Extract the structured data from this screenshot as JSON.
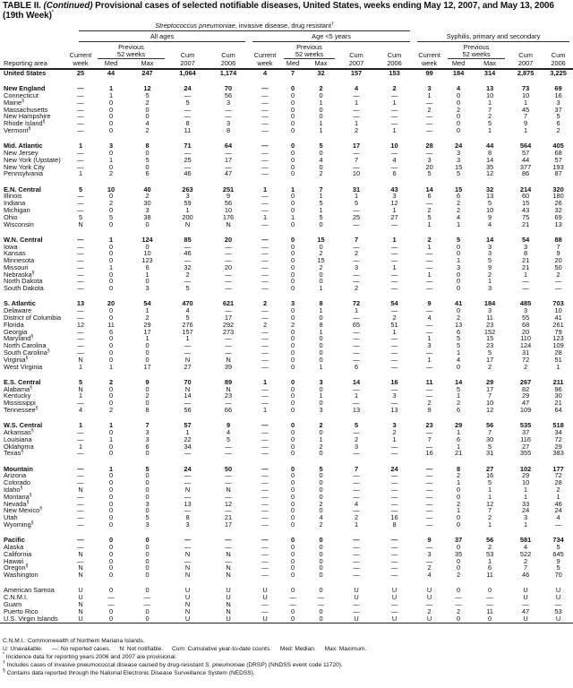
{
  "title": {
    "prefix": "TABLE II. ",
    "continued": "(Continued)",
    "text": " Provisional cases of selected notifiable diseases, United States, weeks ending May 12, 2007, and May 13, 2006",
    "line2": "(19th Week)",
    "marker": "*"
  },
  "header": {
    "strep": "Streptococcus pneumoniae",
    "strep_rest": ", invasive disease, drug resistant",
    "strep_marker": "†",
    "group1": "All ages",
    "group2": "Age <5 years",
    "group3": "Syphilis, primary and secondary",
    "previous": "Previous",
    "weeks52": "52 weeks",
    "current": "Current",
    "week": "week",
    "med": "Med",
    "max": "Max",
    "cum": "Cum",
    "y2007": "2007",
    "y2006": "2006",
    "area": "Reporting area"
  },
  "rows": [
    {
      "area": "United States",
      "bold": true,
      "values": [
        "25",
        "44",
        "247",
        "1,064",
        "1,174",
        "4",
        "7",
        "32",
        "157",
        "153",
        "99",
        "184",
        "314",
        "2,875",
        "3,225"
      ]
    },
    {
      "area": "New England",
      "bold": true,
      "gap": true,
      "values": [
        "—",
        "1",
        "12",
        "24",
        "70",
        "—",
        "0",
        "2",
        "4",
        "2",
        "3",
        "4",
        "13",
        "73",
        "69"
      ]
    },
    {
      "area": "Connecticut",
      "values": [
        "—",
        "1",
        "5",
        "—",
        "56",
        "—",
        "0",
        "0",
        "—",
        "—",
        "1",
        "0",
        "10",
        "10",
        "16"
      ]
    },
    {
      "area": "Maine",
      "fn": "§",
      "values": [
        "—",
        "0",
        "2",
        "5",
        "3",
        "—",
        "0",
        "1",
        "1",
        "1",
        "—",
        "0",
        "1",
        "1",
        "3"
      ]
    },
    {
      "area": "Massachusetts",
      "values": [
        "—",
        "0",
        "0",
        "—",
        "—",
        "—",
        "0",
        "0",
        "—",
        "—",
        "2",
        "2",
        "7",
        "45",
        "37"
      ]
    },
    {
      "area": "New Hampshire",
      "values": [
        "—",
        "0",
        "0",
        "—",
        "—",
        "—",
        "0",
        "0",
        "—",
        "—",
        "—",
        "0",
        "2",
        "7",
        "5"
      ]
    },
    {
      "area": "Rhode Island",
      "fn": "§",
      "values": [
        "—",
        "0",
        "4",
        "8",
        "3",
        "—",
        "0",
        "1",
        "1",
        "—",
        "—",
        "0",
        "5",
        "9",
        "6"
      ]
    },
    {
      "area": "Vermont",
      "fn": "§",
      "values": [
        "—",
        "0",
        "2",
        "11",
        "8",
        "—",
        "0",
        "1",
        "2",
        "1",
        "—",
        "0",
        "1",
        "1",
        "2"
      ]
    },
    {
      "area": "Mid. Atlantic",
      "bold": true,
      "gap": true,
      "values": [
        "1",
        "3",
        "8",
        "71",
        "64",
        "—",
        "0",
        "5",
        "17",
        "10",
        "28",
        "24",
        "44",
        "564",
        "405"
      ]
    },
    {
      "area": "New Jersey",
      "values": [
        "—",
        "0",
        "0",
        "—",
        "—",
        "—",
        "0",
        "0",
        "—",
        "—",
        "—",
        "3",
        "8",
        "57",
        "68"
      ]
    },
    {
      "area": "New York (Upstate)",
      "values": [
        "—",
        "1",
        "5",
        "25",
        "17",
        "—",
        "0",
        "4",
        "7",
        "4",
        "3",
        "3",
        "14",
        "44",
        "57"
      ]
    },
    {
      "area": "New York City",
      "values": [
        "—",
        "0",
        "0",
        "—",
        "—",
        "—",
        "0",
        "0",
        "—",
        "—",
        "20",
        "15",
        "35",
        "377",
        "193"
      ]
    },
    {
      "area": "Pennsylvania",
      "values": [
        "1",
        "2",
        "6",
        "46",
        "47",
        "—",
        "0",
        "2",
        "10",
        "6",
        "5",
        "5",
        "12",
        "86",
        "87"
      ]
    },
    {
      "area": "E.N. Central",
      "bold": true,
      "gap": true,
      "values": [
        "5",
        "10",
        "40",
        "263",
        "251",
        "1",
        "1",
        "7",
        "31",
        "43",
        "14",
        "15",
        "32",
        "214",
        "320"
      ]
    },
    {
      "area": "Illinois",
      "values": [
        "—",
        "0",
        "2",
        "3",
        "9",
        "—",
        "0",
        "1",
        "1",
        "3",
        "6",
        "6",
        "13",
        "60",
        "180"
      ]
    },
    {
      "area": "Indiana",
      "values": [
        "—",
        "2",
        "30",
        "59",
        "56",
        "—",
        "0",
        "5",
        "5",
        "12",
        "—",
        "2",
        "5",
        "15",
        "26"
      ]
    },
    {
      "area": "Michigan",
      "values": [
        "—",
        "0",
        "3",
        "1",
        "10",
        "—",
        "0",
        "1",
        "—",
        "1",
        "2",
        "2",
        "10",
        "43",
        "32"
      ]
    },
    {
      "area": "Ohio",
      "values": [
        "5",
        "5",
        "38",
        "200",
        "176",
        "1",
        "1",
        "5",
        "25",
        "27",
        "5",
        "4",
        "9",
        "75",
        "69"
      ]
    },
    {
      "area": "Wisconsin",
      "values": [
        "N",
        "0",
        "0",
        "N",
        "N",
        "—",
        "0",
        "0",
        "—",
        "—",
        "1",
        "1",
        "4",
        "21",
        "13"
      ]
    },
    {
      "area": "W.N. Central",
      "bold": true,
      "gap": true,
      "values": [
        "—",
        "1",
        "124",
        "85",
        "20",
        "—",
        "0",
        "15",
        "7",
        "1",
        "2",
        "5",
        "14",
        "54",
        "88"
      ]
    },
    {
      "area": "Iowa",
      "values": [
        "—",
        "0",
        "0",
        "—",
        "—",
        "—",
        "0",
        "0",
        "—",
        "—",
        "1",
        "0",
        "3",
        "3",
        "7"
      ]
    },
    {
      "area": "Kansas",
      "values": [
        "—",
        "0",
        "10",
        "46",
        "—",
        "—",
        "0",
        "2",
        "2",
        "—",
        "—",
        "0",
        "3",
        "8",
        "9"
      ]
    },
    {
      "area": "Minnesota",
      "values": [
        "—",
        "0",
        "123",
        "—",
        "—",
        "—",
        "0",
        "15",
        "—",
        "—",
        "—",
        "1",
        "5",
        "21",
        "20"
      ]
    },
    {
      "area": "Missouri",
      "values": [
        "—",
        "1",
        "6",
        "32",
        "20",
        "—",
        "0",
        "2",
        "3",
        "1",
        "—",
        "3",
        "9",
        "21",
        "50"
      ]
    },
    {
      "area": "Nebraska",
      "fn": "§",
      "values": [
        "—",
        "0",
        "1",
        "2",
        "—",
        "—",
        "0",
        "0",
        "—",
        "—",
        "1",
        "0",
        "2",
        "1",
        "2"
      ]
    },
    {
      "area": "North Dakota",
      "values": [
        "—",
        "0",
        "0",
        "—",
        "—",
        "—",
        "0",
        "0",
        "—",
        "—",
        "—",
        "0",
        "1",
        "—",
        "—"
      ]
    },
    {
      "area": "South Dakota",
      "values": [
        "—",
        "0",
        "3",
        "5",
        "—",
        "—",
        "0",
        "1",
        "2",
        "—",
        "—",
        "0",
        "3",
        "—",
        "—"
      ]
    },
    {
      "area": "S. Atlantic",
      "bold": true,
      "gap": true,
      "values": [
        "13",
        "20",
        "54",
        "470",
        "621",
        "2",
        "3",
        "8",
        "72",
        "54",
        "9",
        "41",
        "184",
        "485",
        "703"
      ]
    },
    {
      "area": "Delaware",
      "values": [
        "—",
        "0",
        "1",
        "4",
        "—",
        "—",
        "0",
        "1",
        "1",
        "—",
        "—",
        "0",
        "3",
        "3",
        "10"
      ]
    },
    {
      "area": "District of Columbia",
      "values": [
        "—",
        "0",
        "2",
        "5",
        "17",
        "—",
        "0",
        "0",
        "—",
        "2",
        "4",
        "2",
        "11",
        "55",
        "41"
      ]
    },
    {
      "area": "Florida",
      "values": [
        "12",
        "11",
        "29",
        "276",
        "292",
        "2",
        "2",
        "8",
        "65",
        "51",
        "—",
        "13",
        "23",
        "68",
        "261"
      ]
    },
    {
      "area": "Georgia",
      "values": [
        "—",
        "6",
        "17",
        "157",
        "273",
        "—",
        "0",
        "1",
        "—",
        "1",
        "—",
        "6",
        "152",
        "20",
        "79"
      ]
    },
    {
      "area": "Maryland",
      "fn": "§",
      "values": [
        "—",
        "0",
        "1",
        "1",
        "—",
        "—",
        "0",
        "0",
        "—",
        "—",
        "1",
        "5",
        "15",
        "110",
        "123"
      ]
    },
    {
      "area": "North Carolina",
      "values": [
        "—",
        "0",
        "0",
        "—",
        "—",
        "—",
        "0",
        "0",
        "—",
        "—",
        "3",
        "5",
        "23",
        "124",
        "109"
      ]
    },
    {
      "area": "South Carolina",
      "fn": "§",
      "values": [
        "—",
        "0",
        "0",
        "—",
        "—",
        "—",
        "0",
        "0",
        "—",
        "—",
        "—",
        "1",
        "5",
        "31",
        "28"
      ]
    },
    {
      "area": "Virginia",
      "fn": "§",
      "values": [
        "N",
        "0",
        "0",
        "N",
        "N",
        "—",
        "0",
        "0",
        "—",
        "—",
        "1",
        "4",
        "17",
        "72",
        "51"
      ]
    },
    {
      "area": "West Virginia",
      "values": [
        "1",
        "1",
        "17",
        "27",
        "39",
        "—",
        "0",
        "1",
        "6",
        "—",
        "—",
        "0",
        "2",
        "2",
        "1"
      ]
    },
    {
      "area": "E.S. Central",
      "bold": true,
      "gap": true,
      "values": [
        "5",
        "2",
        "9",
        "70",
        "89",
        "1",
        "0",
        "3",
        "14",
        "16",
        "11",
        "14",
        "29",
        "267",
        "211"
      ]
    },
    {
      "area": "Alabama",
      "fn": "§",
      "values": [
        "N",
        "0",
        "0",
        "N",
        "N",
        "—",
        "0",
        "0",
        "—",
        "—",
        "—",
        "5",
        "17",
        "82",
        "96"
      ]
    },
    {
      "area": "Kentucky",
      "values": [
        "1",
        "0",
        "2",
        "14",
        "23",
        "—",
        "0",
        "1",
        "1",
        "3",
        "—",
        "1",
        "7",
        "29",
        "30"
      ]
    },
    {
      "area": "Mississippi",
      "values": [
        "—",
        "0",
        "0",
        "—",
        "—",
        "—",
        "0",
        "0",
        "—",
        "—",
        "2",
        "2",
        "10",
        "47",
        "21"
      ]
    },
    {
      "area": "Tennessee",
      "fn": "§",
      "values": [
        "4",
        "2",
        "8",
        "56",
        "66",
        "1",
        "0",
        "3",
        "13",
        "13",
        "9",
        "6",
        "12",
        "109",
        "64"
      ]
    },
    {
      "area": "W.S. Central",
      "bold": true,
      "gap": true,
      "values": [
        "1",
        "1",
        "7",
        "57",
        "9",
        "—",
        "0",
        "2",
        "5",
        "3",
        "23",
        "29",
        "56",
        "535",
        "518"
      ]
    },
    {
      "area": "Arkansas",
      "fn": "§",
      "values": [
        "—",
        "0",
        "3",
        "1",
        "4",
        "—",
        "0",
        "0",
        "—",
        "2",
        "—",
        "1",
        "7",
        "37",
        "34"
      ]
    },
    {
      "area": "Louisiana",
      "values": [
        "—",
        "1",
        "3",
        "22",
        "5",
        "—",
        "0",
        "1",
        "2",
        "1",
        "7",
        "6",
        "30",
        "116",
        "72"
      ]
    },
    {
      "area": "Oklahoma",
      "values": [
        "1",
        "0",
        "6",
        "34",
        "—",
        "—",
        "0",
        "2",
        "3",
        "—",
        "—",
        "1",
        "5",
        "27",
        "29"
      ]
    },
    {
      "area": "Texas",
      "fn": "§",
      "values": [
        "—",
        "0",
        "0",
        "—",
        "—",
        "—",
        "0",
        "0",
        "—",
        "—",
        "16",
        "21",
        "31",
        "355",
        "383"
      ]
    },
    {
      "area": "Mountain",
      "bold": true,
      "gap": true,
      "values": [
        "—",
        "1",
        "5",
        "24",
        "50",
        "—",
        "0",
        "5",
        "7",
        "24",
        "—",
        "8",
        "27",
        "102",
        "177"
      ]
    },
    {
      "area": "Arizona",
      "values": [
        "—",
        "0",
        "0",
        "—",
        "—",
        "—",
        "0",
        "0",
        "—",
        "—",
        "—",
        "2",
        "16",
        "29",
        "72"
      ]
    },
    {
      "area": "Colorado",
      "values": [
        "—",
        "0",
        "0",
        "—",
        "—",
        "—",
        "0",
        "0",
        "—",
        "—",
        "—",
        "1",
        "5",
        "10",
        "28"
      ]
    },
    {
      "area": "Idaho",
      "fn": "§",
      "values": [
        "N",
        "0",
        "0",
        "N",
        "N",
        "—",
        "0",
        "0",
        "—",
        "—",
        "—",
        "0",
        "1",
        "1",
        "2"
      ]
    },
    {
      "area": "Montana",
      "fn": "§",
      "values": [
        "—",
        "0",
        "0",
        "—",
        "—",
        "—",
        "0",
        "0",
        "—",
        "—",
        "—",
        "0",
        "1",
        "1",
        "1"
      ]
    },
    {
      "area": "Nevada",
      "fn": "§",
      "values": [
        "—",
        "0",
        "3",
        "13",
        "12",
        "—",
        "0",
        "2",
        "4",
        "—",
        "—",
        "2",
        "12",
        "33",
        "46"
      ]
    },
    {
      "area": "New Mexico",
      "fn": "§",
      "values": [
        "—",
        "0",
        "0",
        "—",
        "—",
        "—",
        "0",
        "0",
        "—",
        "—",
        "—",
        "1",
        "7",
        "24",
        "24"
      ]
    },
    {
      "area": "Utah",
      "values": [
        "—",
        "0",
        "5",
        "8",
        "21",
        "—",
        "0",
        "4",
        "2",
        "16",
        "—",
        "0",
        "2",
        "3",
        "4"
      ]
    },
    {
      "area": "Wyoming",
      "fn": "§",
      "values": [
        "—",
        "0",
        "3",
        "3",
        "17",
        "—",
        "0",
        "2",
        "1",
        "8",
        "—",
        "0",
        "1",
        "1",
        "—"
      ]
    },
    {
      "area": "Pacific",
      "bold": true,
      "gap": true,
      "values": [
        "—",
        "0",
        "0",
        "—",
        "—",
        "—",
        "0",
        "0",
        "—",
        "—",
        "9",
        "37",
        "56",
        "581",
        "734"
      ]
    },
    {
      "area": "Alaska",
      "values": [
        "—",
        "0",
        "0",
        "—",
        "—",
        "—",
        "0",
        "0",
        "—",
        "—",
        "—",
        "0",
        "2",
        "4",
        "5"
      ]
    },
    {
      "area": "California",
      "values": [
        "N",
        "0",
        "0",
        "N",
        "N",
        "—",
        "0",
        "0",
        "—",
        "—",
        "3",
        "35",
        "53",
        "522",
        "645"
      ]
    },
    {
      "area": "Hawaii",
      "values": [
        "—",
        "0",
        "0",
        "—",
        "—",
        "—",
        "0",
        "0",
        "—",
        "—",
        "—",
        "0",
        "1",
        "2",
        "9"
      ]
    },
    {
      "area": "Oregon",
      "fn": "§",
      "values": [
        "N",
        "0",
        "0",
        "N",
        "N",
        "—",
        "0",
        "0",
        "—",
        "—",
        "2",
        "0",
        "6",
        "7",
        "5"
      ]
    },
    {
      "area": "Washington",
      "values": [
        "N",
        "0",
        "0",
        "N",
        "N",
        "—",
        "0",
        "0",
        "—",
        "—",
        "4",
        "2",
        "11",
        "46",
        "70"
      ]
    },
    {
      "area": "American Samoa",
      "gap": true,
      "values": [
        "U",
        "0",
        "0",
        "U",
        "U",
        "U",
        "0",
        "0",
        "U",
        "U",
        "U",
        "0",
        "0",
        "U",
        "U"
      ]
    },
    {
      "area": "C.N.M.I.",
      "values": [
        "U",
        "—",
        "—",
        "U",
        "U",
        "U",
        "—",
        "—",
        "U",
        "U",
        "U",
        "—",
        "—",
        "U",
        "U"
      ]
    },
    {
      "area": "Guam",
      "values": [
        "N",
        "—",
        "—",
        "N",
        "N",
        "—",
        "—",
        "—",
        "—",
        "—",
        "—",
        "—",
        "—",
        "—",
        "—"
      ]
    },
    {
      "area": "Puerto Rico",
      "values": [
        "N",
        "0",
        "0",
        "N",
        "N",
        "—",
        "0",
        "0",
        "—",
        "—",
        "2",
        "2",
        "11",
        "47",
        "53"
      ]
    },
    {
      "area": "U.S. Virgin Islands",
      "values": [
        "U",
        "0",
        "0",
        "U",
        "U",
        "U",
        "0",
        "0",
        "U",
        "U",
        "U",
        "0",
        "0",
        "U",
        "U"
      ]
    }
  ],
  "footnotes": {
    "cnmi": "C.N.M.I.: Commonwealth of Northern Mariana Islands.",
    "legend": [
      "U: Unavailable.",
      "—: No reported cases.",
      "N: Not notifiable.",
      "Cum: Cumulative year-to-date counts.",
      "Med: Median.",
      "Max: Maximum."
    ],
    "star_mark": "*",
    "star": "Incidence data for reporting years 2006 and 2007 are provisional.",
    "dagger_mark": "†",
    "dagger_pre": "Includes cases of invasive pneumococcal disease caused by drug-resistant ",
    "dagger_italic": "S. pneumoniae",
    "dagger_post": " (DRSP) (NNDSS event code 11720).",
    "section_mark": "§",
    "section": "Contains data reported through the National Electronic Disease Surveillance System (NEDSS)."
  }
}
